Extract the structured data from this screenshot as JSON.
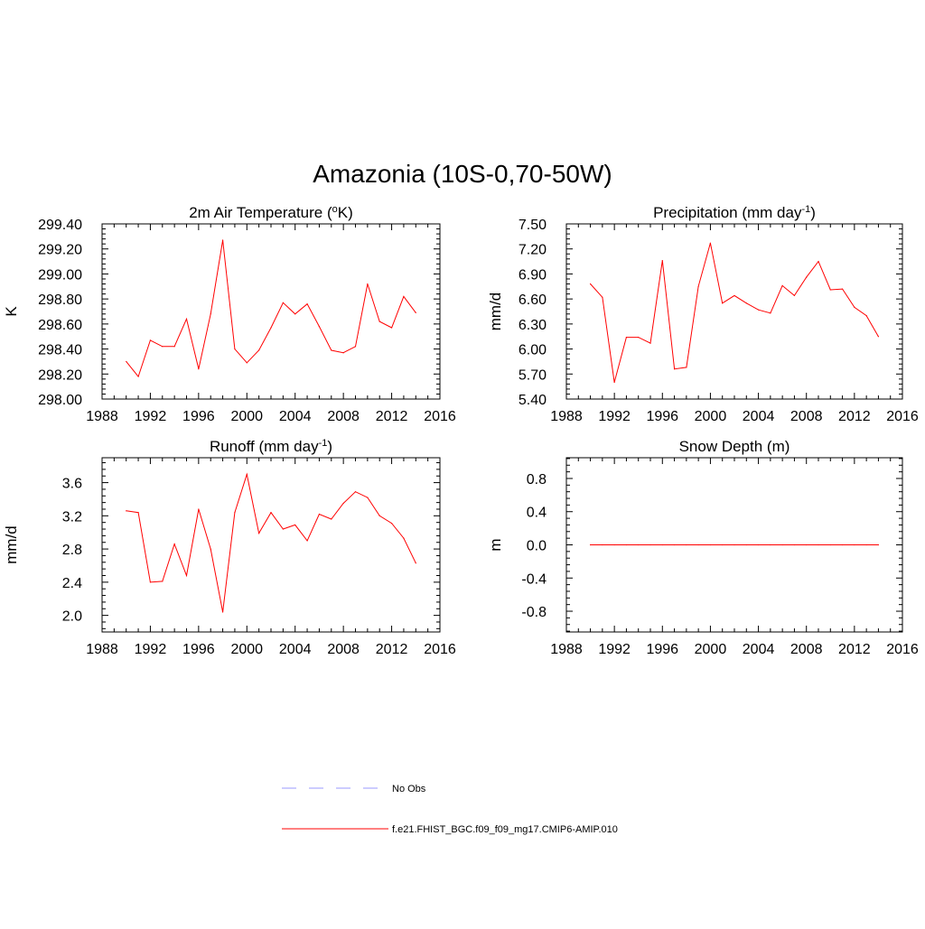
{
  "main_title": "Amazonia (10S-0,70-50W)",
  "colors": {
    "model_line": "#ff0000",
    "obs_line": "#9999ff",
    "axis": "#000000"
  },
  "legend": {
    "obs_label": "No Obs",
    "model_label": "f.e21.FHIST_BGC.f09_f09_mg17.CMIP6-AMIP.010"
  },
  "chart_data": [
    {
      "type": "line",
      "title": "2m Air Temperature (oK)",
      "title_parts": [
        "2m Air Temperature (",
        "o",
        "K)"
      ],
      "title_sup_index": 1,
      "xlabel": "",
      "ylabel": "K",
      "xlim": [
        1988,
        2016
      ],
      "ylim": [
        298.0,
        299.4
      ],
      "xticks": [
        1988,
        1992,
        1996,
        2000,
        2004,
        2008,
        2012,
        2016
      ],
      "yticks": [
        "298.00",
        "298.20",
        "298.40",
        "298.60",
        "298.80",
        "299.00",
        "299.20",
        "299.40"
      ],
      "x": [
        1990,
        1991,
        1992,
        1993,
        1994,
        1995,
        1996,
        1997,
        1998,
        1999,
        2000,
        2001,
        2002,
        2003,
        2004,
        2005,
        2006,
        2007,
        2008,
        2009,
        2010,
        2011,
        2012,
        2013,
        2014
      ],
      "series": [
        {
          "values": [
            298.3,
            298.18,
            298.47,
            298.42,
            298.42,
            298.64,
            298.24,
            298.68,
            299.27,
            298.4,
            298.29,
            298.39,
            298.57,
            298.77,
            298.68,
            298.76,
            298.58,
            298.39,
            298.37,
            298.42,
            298.92,
            298.62,
            298.57,
            298.82,
            298.69
          ]
        }
      ]
    },
    {
      "type": "line",
      "title": "Precipitation (mm day-1)",
      "title_parts": [
        "Precipitation (mm day",
        "-1",
        ")"
      ],
      "title_sup_index": 1,
      "xlabel": "",
      "ylabel": "mm/d",
      "xlim": [
        1988,
        2016
      ],
      "ylim": [
        5.4,
        7.5
      ],
      "xticks": [
        1988,
        1992,
        1996,
        2000,
        2004,
        2008,
        2012,
        2016
      ],
      "yticks": [
        "5.40",
        "5.70",
        "6.00",
        "6.30",
        "6.60",
        "6.90",
        "7.20",
        "7.50"
      ],
      "x": [
        1990,
        1991,
        1992,
        1993,
        1994,
        1995,
        1996,
        1997,
        1998,
        1999,
        2000,
        2001,
        2002,
        2003,
        2004,
        2005,
        2006,
        2007,
        2008,
        2009,
        2010,
        2011,
        2012,
        2013,
        2014
      ],
      "series": [
        {
          "values": [
            6.78,
            6.62,
            5.6,
            6.14,
            6.14,
            6.07,
            7.06,
            5.76,
            5.78,
            6.75,
            7.27,
            6.55,
            6.64,
            6.55,
            6.47,
            6.43,
            6.76,
            6.64,
            6.86,
            7.05,
            6.71,
            6.72,
            6.5,
            6.4,
            6.15
          ]
        }
      ]
    },
    {
      "type": "line",
      "title": "Runoff (mm day-1)",
      "title_parts": [
        "Runoff (mm day",
        "-1",
        ")"
      ],
      "title_sup_index": 1,
      "xlabel": "",
      "ylabel": "mm/d",
      "xlim": [
        1988,
        2016
      ],
      "ylim": [
        1.8,
        3.9
      ],
      "xticks": [
        1988,
        1992,
        1996,
        2000,
        2004,
        2008,
        2012,
        2016
      ],
      "yticks": [
        "2.0",
        "2.4",
        "2.8",
        "3.2",
        "3.6"
      ],
      "x": [
        1990,
        1991,
        1992,
        1993,
        1994,
        1995,
        1996,
        1997,
        1998,
        1999,
        2000,
        2001,
        2002,
        2003,
        2004,
        2005,
        2006,
        2007,
        2008,
        2009,
        2010,
        2011,
        2012,
        2013,
        2014
      ],
      "series": [
        {
          "values": [
            3.26,
            3.24,
            2.4,
            2.41,
            2.86,
            2.48,
            3.28,
            2.8,
            2.04,
            3.24,
            3.7,
            2.99,
            3.24,
            3.04,
            3.09,
            2.9,
            3.22,
            3.16,
            3.35,
            3.49,
            3.42,
            3.2,
            3.11,
            2.93,
            2.63
          ]
        }
      ]
    },
    {
      "type": "line",
      "title": "Snow Depth (m)",
      "title_parts": [
        "Snow Depth (m)"
      ],
      "title_sup_index": -1,
      "xlabel": "",
      "ylabel": "m",
      "xlim": [
        1988,
        2016
      ],
      "ylim": [
        -1.05,
        1.05
      ],
      "xticks": [
        1988,
        1992,
        1996,
        2000,
        2004,
        2008,
        2012,
        2016
      ],
      "yticks": [
        "-0.8",
        "-0.4",
        "0.0",
        "0.4",
        "0.8"
      ],
      "x": [
        1990,
        1991,
        1992,
        1993,
        1994,
        1995,
        1996,
        1997,
        1998,
        1999,
        2000,
        2001,
        2002,
        2003,
        2004,
        2005,
        2006,
        2007,
        2008,
        2009,
        2010,
        2011,
        2012,
        2013,
        2014
      ],
      "series": [
        {
          "values": [
            0,
            0,
            0,
            0,
            0,
            0,
            0,
            0,
            0,
            0,
            0,
            0,
            0,
            0,
            0,
            0,
            0,
            0,
            0,
            0,
            0,
            0,
            0,
            0,
            0
          ]
        }
      ]
    }
  ]
}
